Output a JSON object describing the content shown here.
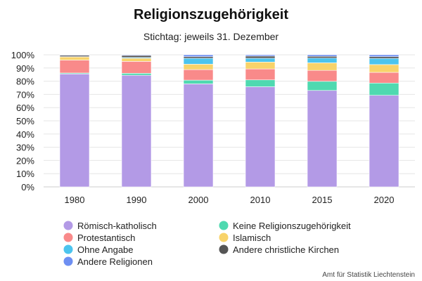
{
  "chart_data": {
    "type": "bar",
    "stacked": true,
    "percent": true,
    "title": "Religionszugehörigkeit",
    "subtitle": "Stichtag: jeweils 31. Dezember",
    "categories": [
      "1980",
      "1990",
      "2000",
      "2010",
      "2015",
      "2020"
    ],
    "ylim": [
      0,
      100
    ],
    "yticks": [
      "0%",
      "10%",
      "20%",
      "30%",
      "40%",
      "50%",
      "60%",
      "70%",
      "80%",
      "90%",
      "100%"
    ],
    "grid": true,
    "legend_position": "bottom",
    "series": [
      {
        "name": "Römisch-katholisch",
        "color": "#b39ae6",
        "values": [
          85.5,
          84.5,
          78.0,
          75.8,
          73.0,
          69.3
        ]
      },
      {
        "name": "Keine Religionszugehörigkeit",
        "color": "#4fd9b0",
        "values": [
          0.7,
          1.5,
          2.8,
          5.2,
          6.9,
          9.3
        ]
      },
      {
        "name": "Protestantisch",
        "color": "#f98a8a",
        "values": [
          9.8,
          9.0,
          8.0,
          8.3,
          8.3,
          8.1
        ]
      },
      {
        "name": "Islamisch",
        "color": "#f8d36a",
        "values": [
          2.4,
          2.4,
          4.1,
          5.2,
          5.7,
          5.9
        ]
      },
      {
        "name": "Ohne Angabe",
        "color": "#4cc4ee",
        "values": [
          0.2,
          0.6,
          4.5,
          2.9,
          3.6,
          4.7
        ]
      },
      {
        "name": "Andere christliche Kirchen",
        "color": "#555555",
        "values": [
          1.0,
          1.5,
          1.2,
          1.6,
          1.3,
          1.3
        ]
      },
      {
        "name": "Andere Religionen",
        "color": "#6e8ff2",
        "values": [
          0.4,
          0.5,
          1.4,
          1.0,
          1.2,
          1.4
        ]
      }
    ]
  },
  "legend_order": [
    0,
    2,
    4,
    6,
    1,
    3,
    5
  ],
  "credit": "Amt für Statistik Liechtenstein"
}
